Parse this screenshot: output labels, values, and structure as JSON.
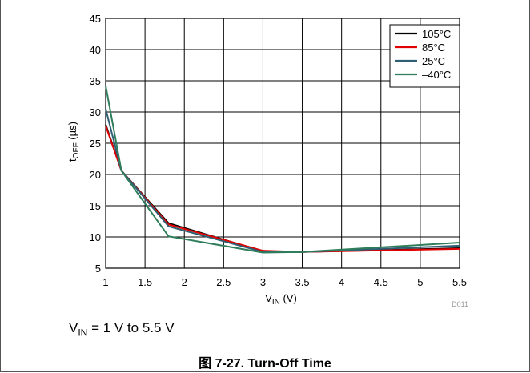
{
  "chart_data": {
    "type": "line",
    "caption": "图 7-27. Turn-Off Time",
    "condition": {
      "prefix": "V",
      "sub": "IN",
      "rest": " = 1 V to 5.5 V"
    },
    "figure_id": "D011",
    "ylabel": {
      "main": "t",
      "sub": "OFF",
      "rest": " (µs)"
    },
    "xlabel": {
      "main": "V",
      "sub": "IN",
      "rest": " (V)"
    },
    "xlim": [
      1,
      5.5
    ],
    "ylim": [
      5,
      45
    ],
    "x_ticks": [
      "1",
      "1.5",
      "2",
      "2.5",
      "3",
      "3.5",
      "4",
      "4.5",
      "5",
      "5.5"
    ],
    "y_ticks": [
      "5",
      "10",
      "15",
      "20",
      "25",
      "30",
      "35",
      "40",
      "45"
    ],
    "grid": true,
    "legend_position": "top-right",
    "x": [
      1,
      1.2,
      1.8,
      3,
      3.5,
      5.5
    ],
    "series": [
      {
        "name": "105°C",
        "color": "#000000",
        "values": [
          28,
          20.6,
          12.2,
          7.7,
          7.6,
          8.2
        ]
      },
      {
        "name": "85°C",
        "color": "#e00000",
        "values": [
          27.8,
          20.6,
          12.0,
          7.8,
          7.6,
          8.1
        ]
      },
      {
        "name": "25°C",
        "color": "#2f5f73",
        "values": [
          30.5,
          20.6,
          11.7,
          7.6,
          7.6,
          8.6
        ]
      },
      {
        "name": "–40°C",
        "color": "#2e7d5b",
        "values": [
          34.2,
          20.6,
          10.1,
          7.5,
          7.6,
          9.1
        ]
      }
    ]
  }
}
